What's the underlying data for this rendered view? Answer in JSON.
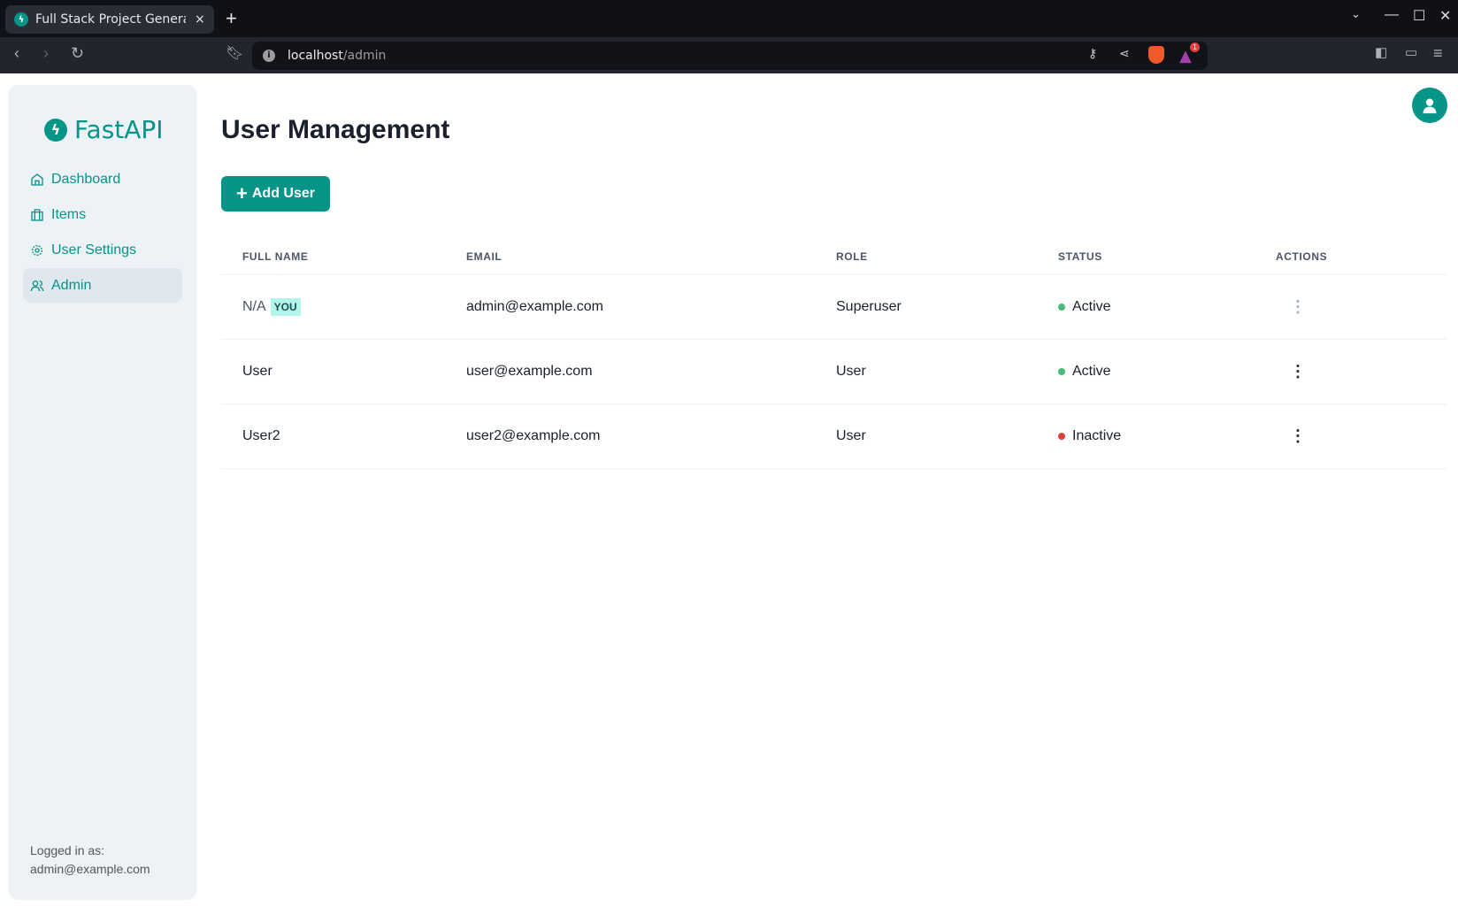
{
  "browser": {
    "tab_title": "Full Stack Project Generator",
    "url_host": "localhost",
    "url_path": "/admin",
    "new_tab": "+",
    "close": "×",
    "brave_badge": "1"
  },
  "sidebar": {
    "logo": "FastAPI",
    "items": [
      {
        "label": "Dashboard",
        "icon": "home-icon"
      },
      {
        "label": "Items",
        "icon": "briefcase-icon"
      },
      {
        "label": "User Settings",
        "icon": "gear-icon"
      },
      {
        "label": "Admin",
        "icon": "users-icon",
        "active": true
      }
    ],
    "footer_label": "Logged in as:",
    "footer_email": "admin@example.com"
  },
  "main": {
    "title": "User Management",
    "add_button": "Add User",
    "columns": [
      "FULL NAME",
      "EMAIL",
      "ROLE",
      "STATUS",
      "ACTIONS"
    ],
    "rows": [
      {
        "name": "N/A",
        "badge": "YOU",
        "email": "admin@example.com",
        "role": "Superuser",
        "status": "Active",
        "actions_disabled": true
      },
      {
        "name": "User",
        "email": "user@example.com",
        "role": "User",
        "status": "Active"
      },
      {
        "name": "User2",
        "email": "user2@example.com",
        "role": "User",
        "status": "Inactive"
      }
    ]
  },
  "colors": {
    "accent": "#059488",
    "active": "#48bb78",
    "inactive": "#e53e3e"
  }
}
